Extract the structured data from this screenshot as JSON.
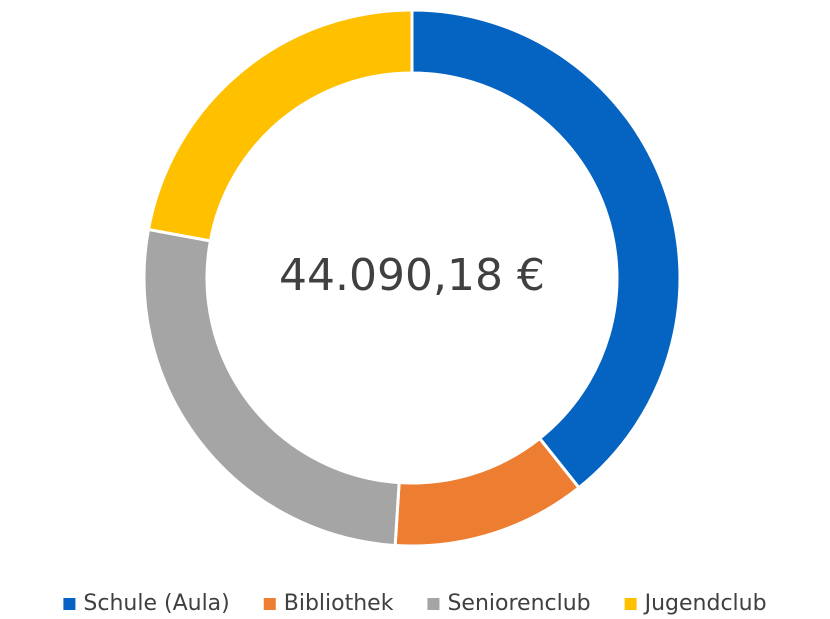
{
  "chart_data": {
    "type": "donut",
    "center_label": "44.090,18 €",
    "categories": [
      "Schule (Aula)",
      "Bibliothek",
      "Seniorenclub",
      "Jugendclub"
    ],
    "values": [
      39.3,
      11.7,
      26.9,
      22.1
    ],
    "colors": [
      "#0563c1",
      "#ed7d31",
      "#a5a5a5",
      "#ffc000"
    ],
    "legend": "bottom"
  }
}
